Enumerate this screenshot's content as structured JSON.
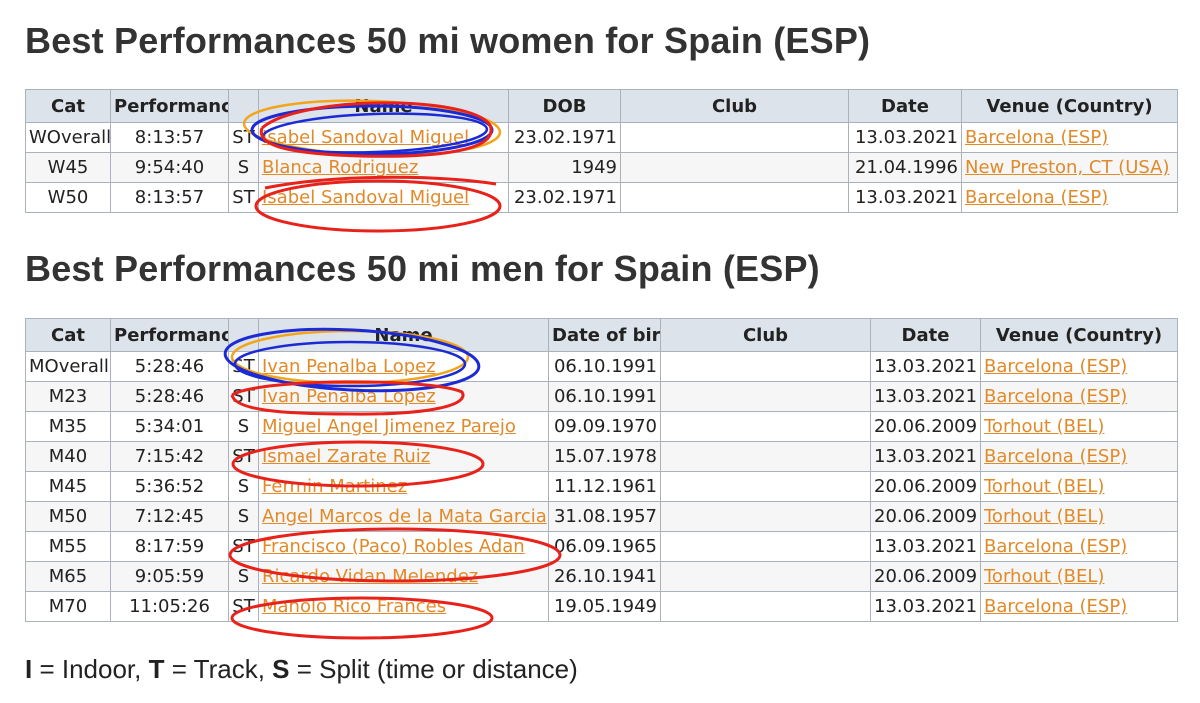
{
  "women": {
    "title": "Best Performances 50 mi women for Spain (ESP)",
    "headers": [
      "Cat",
      "Performance",
      "",
      "Name",
      "DOB",
      "Club",
      "Date",
      "Venue (Country)"
    ],
    "rows": [
      {
        "cat": "WOverall",
        "perf": "8:13:57",
        "flag": "ST",
        "name": "Isabel Sandoval Miguel",
        "dob": "23.02.1971",
        "club": "",
        "date": "13.03.2021",
        "venue": "Barcelona (ESP)"
      },
      {
        "cat": "W45",
        "perf": "9:54:40",
        "flag": "S",
        "name": "Blanca Rodriguez",
        "dob": "1949",
        "club": "",
        "date": "21.04.1996",
        "venue": "New Preston, CT (USA)"
      },
      {
        "cat": "W50",
        "perf": "8:13:57",
        "flag": "ST",
        "name": "Isabel Sandoval Miguel",
        "dob": "23.02.1971",
        "club": "",
        "date": "13.03.2021",
        "venue": "Barcelona (ESP)"
      }
    ]
  },
  "men": {
    "title": "Best Performances 50 mi men for Spain (ESP)",
    "headers": [
      "Cat",
      "Performance",
      "",
      "Name",
      "Date of birth",
      "Club",
      "Date",
      "Venue (Country)"
    ],
    "rows": [
      {
        "cat": "MOverall",
        "perf": "5:28:46",
        "flag": "ST",
        "name": "Ivan Penalba Lopez",
        "dob": "06.10.1991",
        "club": "",
        "date": "13.03.2021",
        "venue": "Barcelona (ESP)"
      },
      {
        "cat": "M23",
        "perf": "5:28:46",
        "flag": "ST",
        "name": "Ivan Penalba Lopez",
        "dob": "06.10.1991",
        "club": "",
        "date": "13.03.2021",
        "venue": "Barcelona (ESP)"
      },
      {
        "cat": "M35",
        "perf": "5:34:01",
        "flag": "S",
        "name": "Miguel Angel Jimenez Parejo",
        "dob": "09.09.1970",
        "club": "",
        "date": "20.06.2009",
        "venue": "Torhout (BEL)"
      },
      {
        "cat": "M40",
        "perf": "7:15:42",
        "flag": "ST",
        "name": "Ismael Zarate Ruiz",
        "dob": "15.07.1978",
        "club": "",
        "date": "13.03.2021",
        "venue": "Barcelona (ESP)"
      },
      {
        "cat": "M45",
        "perf": "5:36:52",
        "flag": "S",
        "name": "Fermin Martinez",
        "dob": "11.12.1961",
        "club": "",
        "date": "20.06.2009",
        "venue": "Torhout (BEL)"
      },
      {
        "cat": "M50",
        "perf": "7:12:45",
        "flag": "S",
        "name": "Angel Marcos de la Mata Garcia",
        "dob": "31.08.1957",
        "club": "",
        "date": "20.06.2009",
        "venue": "Torhout (BEL)"
      },
      {
        "cat": "M55",
        "perf": "8:17:59",
        "flag": "ST",
        "name": "Francisco (Paco) Robles Adan",
        "dob": "06.09.1965",
        "club": "",
        "date": "13.03.2021",
        "venue": "Barcelona (ESP)"
      },
      {
        "cat": "M65",
        "perf": "9:05:59",
        "flag": "S",
        "name": "Ricardo Vidan Melendez",
        "dob": "26.10.1941",
        "club": "",
        "date": "20.06.2009",
        "venue": "Torhout (BEL)"
      },
      {
        "cat": "M70",
        "perf": "11:05:26",
        "flag": "ST",
        "name": "Manolo Rico Frances",
        "dob": "19.05.1949",
        "club": "",
        "date": "13.03.2021",
        "venue": "Barcelona (ESP)"
      }
    ]
  },
  "legend": {
    "i_key": "I",
    "i_text": " = Indoor, ",
    "t_key": "T",
    "t_text": " = Track, ",
    "s_key": "S",
    "s_text": " = Split (time or distance)"
  },
  "annotation_colors": {
    "red": "#e8221a",
    "blue": "#1c2ad6",
    "orange": "#f2a51a"
  },
  "link_color": "#e08a2a"
}
